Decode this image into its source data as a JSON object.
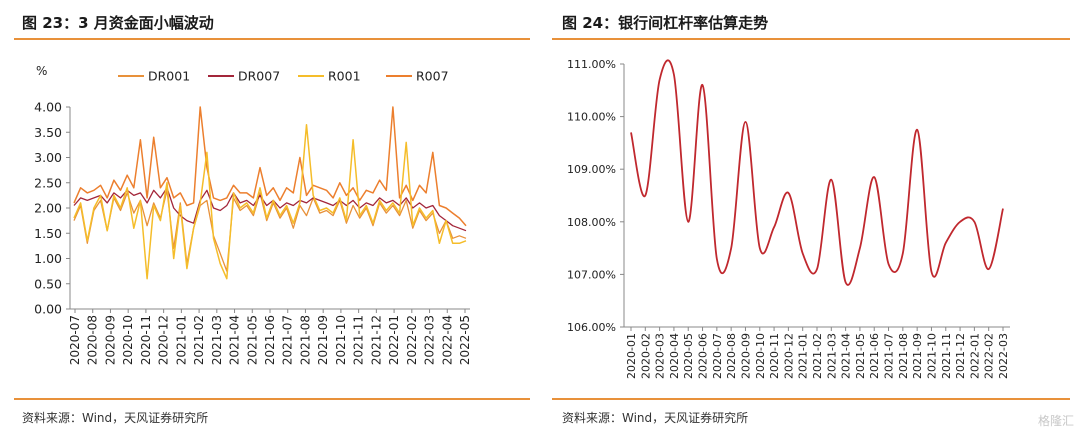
{
  "left_panel": {
    "title": "图 23：3 月资金面小幅波动",
    "source": "资料来源：Wind，天风证券研究所"
  },
  "right_panel": {
    "title": "图 24：银行间杠杆率估算走势",
    "source": "资料来源：Wind，天风证券研究所"
  },
  "watermark": "格隆汇",
  "colors": {
    "accent": "#e8913a",
    "DR001": "#e8913a",
    "DR007": "#a3263a",
    "R001": "#f5bd2a",
    "R007": "#ec7f2e",
    "leverage": "#c0282e"
  },
  "chart_data": [
    {
      "type": "line",
      "unit": "%",
      "ylim": [
        0,
        4
      ],
      "yticks": [
        "0.00",
        "0.50",
        "1.00",
        "1.50",
        "2.00",
        "2.50",
        "3.00",
        "3.50",
        "4.00"
      ],
      "xticks": [
        "2020-07",
        "2020-08",
        "2020-09",
        "2020-10",
        "2020-11",
        "2020-12",
        "2021-01",
        "2021-02",
        "2021-03",
        "2021-04",
        "2021-05",
        "2021-06",
        "2021-07",
        "2021-08",
        "2021-09",
        "2021-10",
        "2021-11",
        "2021-12",
        "2022-01",
        "2022-02",
        "2022-03",
        "2022-04",
        "2022-05"
      ],
      "legend": [
        "DR001",
        "DR007",
        "R001",
        "R007"
      ],
      "legend_position": "top",
      "grid": false,
      "series": [
        {
          "name": "DR001",
          "values": [
            1.75,
            2.05,
            1.3,
            1.95,
            2.15,
            1.55,
            2.2,
            1.95,
            2.3,
            1.9,
            2.15,
            1.65,
            2.1,
            1.8,
            2.35,
            1.2,
            2.1,
            0.9,
            1.6,
            2.05,
            2.15,
            1.45,
            1.1,
            0.75,
            2.2,
            1.95,
            2.05,
            1.85,
            2.3,
            1.75,
            2.1,
            1.8,
            2.0,
            1.6,
            2.05,
            1.85,
            2.2,
            1.9,
            1.95,
            1.85,
            2.15,
            1.7,
            2.05,
            1.8,
            2.0,
            1.65,
            2.1,
            1.9,
            2.05,
            1.85,
            2.15,
            1.6,
            1.95,
            1.75,
            1.9,
            1.5,
            1.75,
            1.4,
            1.45,
            1.4
          ]
        },
        {
          "name": "DR007",
          "values": [
            2.05,
            2.2,
            2.15,
            2.2,
            2.25,
            2.1,
            2.3,
            2.2,
            2.35,
            2.25,
            2.3,
            2.1,
            2.35,
            2.2,
            2.4,
            2.0,
            1.85,
            1.75,
            1.7,
            2.15,
            2.35,
            2.0,
            1.95,
            2.05,
            2.3,
            2.1,
            2.15,
            2.05,
            2.25,
            2.05,
            2.15,
            2.0,
            2.1,
            2.05,
            2.15,
            2.1,
            2.2,
            2.15,
            2.1,
            2.05,
            2.15,
            2.05,
            2.15,
            2.0,
            2.1,
            2.05,
            2.2,
            2.1,
            2.15,
            2.05,
            2.2,
            2.0,
            2.1,
            2.0,
            2.05,
            1.85,
            1.75,
            1.65,
            1.6,
            1.55
          ]
        },
        {
          "name": "R001",
          "values": [
            1.8,
            2.1,
            1.35,
            2.0,
            2.25,
            1.55,
            2.25,
            2.0,
            2.4,
            1.6,
            2.15,
            0.6,
            2.05,
            1.75,
            2.5,
            1.0,
            2.05,
            0.8,
            1.6,
            2.1,
            3.1,
            1.4,
            0.9,
            0.6,
            2.3,
            2.0,
            2.1,
            1.9,
            2.4,
            1.8,
            2.15,
            1.85,
            2.05,
            1.7,
            2.1,
            3.65,
            2.25,
            1.95,
            2.0,
            1.9,
            2.2,
            1.75,
            3.35,
            1.85,
            2.05,
            1.7,
            2.15,
            1.95,
            2.1,
            1.9,
            3.3,
            1.65,
            2.0,
            1.8,
            1.95,
            1.3,
            1.75,
            1.3,
            1.3,
            1.35
          ]
        },
        {
          "name": "R007",
          "values": [
            2.1,
            2.4,
            2.3,
            2.35,
            2.45,
            2.2,
            2.55,
            2.35,
            2.65,
            2.4,
            3.35,
            2.2,
            3.4,
            2.4,
            2.6,
            2.2,
            2.3,
            2.05,
            2.1,
            4.0,
            2.8,
            2.2,
            2.15,
            2.2,
            2.45,
            2.3,
            2.3,
            2.2,
            2.8,
            2.25,
            2.4,
            2.15,
            2.4,
            2.3,
            3.0,
            2.25,
            2.45,
            2.4,
            2.35,
            2.2,
            2.5,
            2.25,
            2.4,
            2.15,
            2.35,
            2.3,
            2.55,
            2.35,
            4.0,
            2.2,
            2.45,
            2.15,
            2.45,
            2.3,
            3.1,
            2.05,
            2.0,
            1.9,
            1.8,
            1.65
          ]
        }
      ]
    },
    {
      "type": "line",
      "ylim": [
        106,
        111
      ],
      "yticks": [
        "106.00%",
        "107.00%",
        "108.00%",
        "109.00%",
        "110.00%",
        "111.00%"
      ],
      "xticks": [
        "2020-01",
        "2020-02",
        "2020-03",
        "2020-04",
        "2020-05",
        "2020-06",
        "2020-07",
        "2020-08",
        "2020-09",
        "2020-10",
        "2020-11",
        "2020-12",
        "2021-01",
        "2021-02",
        "2021-03",
        "2021-04",
        "2021-05",
        "2021-06",
        "2021-07",
        "2021-08",
        "2021-09",
        "2021-10",
        "2021-11",
        "2021-12",
        "2022-01",
        "2022-02",
        "2022-03"
      ],
      "grid": false,
      "series": [
        {
          "name": "",
          "values": [
            109.7,
            108.5,
            110.7,
            110.8,
            108.0,
            110.6,
            107.3,
            107.5,
            109.9,
            107.5,
            107.9,
            108.55,
            107.4,
            107.1,
            108.8,
            106.85,
            107.5,
            108.85,
            107.2,
            107.4,
            109.75,
            107.05,
            107.6,
            108.0,
            108.0,
            107.1,
            108.25
          ]
        }
      ]
    }
  ]
}
